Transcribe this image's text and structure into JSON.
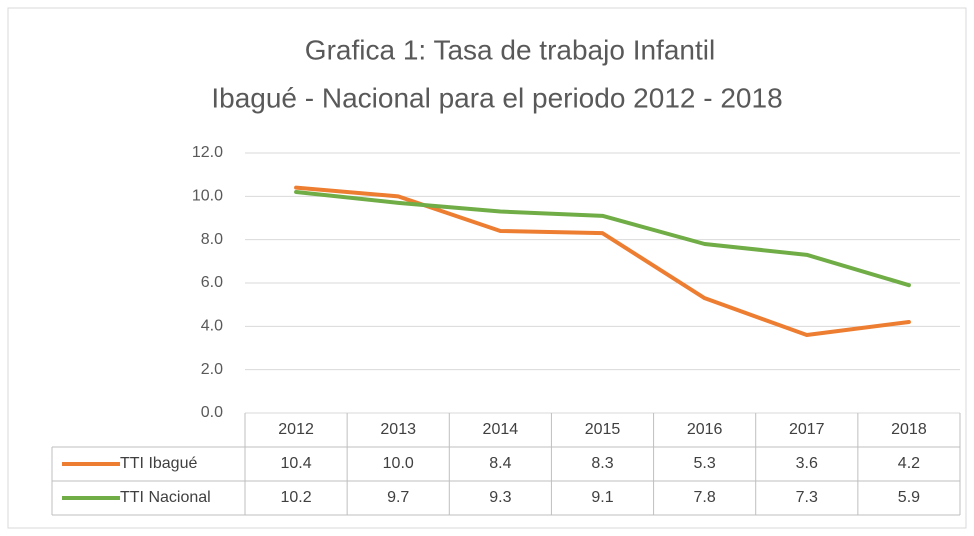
{
  "chart_data": {
    "type": "line",
    "title": [
      "Grafica 1: Tasa de trabajo Infantil",
      "Ibagué - Nacional para el periodo 2012 - 2018"
    ],
    "categories": [
      "2012",
      "2013",
      "2014",
      "2015",
      "2016",
      "2017",
      "2018"
    ],
    "series": [
      {
        "name": "TTI Ibagué",
        "color": "#ed7d31",
        "values": [
          10.4,
          10.0,
          8.4,
          8.3,
          5.3,
          3.6,
          4.2
        ],
        "value_labels": [
          "10.4",
          "10.0",
          "8.4",
          "8.3",
          "5.3",
          "3.6",
          "4.2"
        ]
      },
      {
        "name": "TTI Nacional",
        "color": "#70ad47",
        "values": [
          10.2,
          9.7,
          9.3,
          9.1,
          7.8,
          7.3,
          5.9
        ],
        "value_labels": [
          "10.2",
          "9.7",
          "9.3",
          "9.1",
          "7.8",
          "7.3",
          "5.9"
        ]
      }
    ],
    "ylim": [
      0,
      12
    ],
    "yticks": [
      {
        "value": 0,
        "label": "0.0"
      },
      {
        "value": 2,
        "label": "2.0"
      },
      {
        "value": 4,
        "label": "4.0"
      },
      {
        "value": 6,
        "label": "6.0"
      },
      {
        "value": 8,
        "label": "8.0"
      },
      {
        "value": 10,
        "label": "10.0"
      },
      {
        "value": 12,
        "label": "12.0"
      }
    ],
    "grid": true
  }
}
